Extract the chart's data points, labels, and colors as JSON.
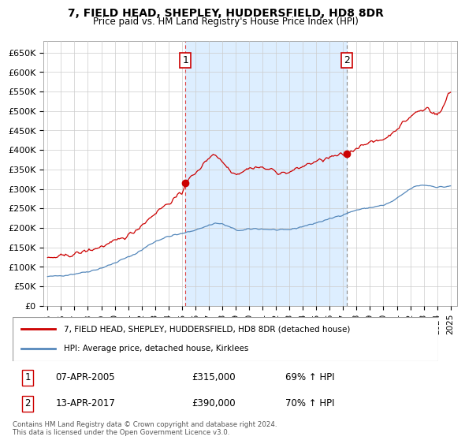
{
  "title": "7, FIELD HEAD, SHEPLEY, HUDDERSFIELD, HD8 8DR",
  "subtitle": "Price paid vs. HM Land Registry's House Price Index (HPI)",
  "ylabel_ticks": [
    "£0",
    "£50K",
    "£100K",
    "£150K",
    "£200K",
    "£250K",
    "£300K",
    "£350K",
    "£400K",
    "£450K",
    "£500K",
    "£550K",
    "£600K",
    "£650K"
  ],
  "ytick_values": [
    0,
    50000,
    100000,
    150000,
    200000,
    250000,
    300000,
    350000,
    400000,
    450000,
    500000,
    550000,
    600000,
    650000
  ],
  "ylim": [
    0,
    680000
  ],
  "xlim_start": 1994.7,
  "xlim_end": 2025.5,
  "sale1_x": 2005.27,
  "sale1_y": 315000,
  "sale2_x": 2017.28,
  "sale2_y": 390000,
  "red_color": "#cc0000",
  "blue_color": "#5588bb",
  "shade_color": "#ddeeff",
  "vline1_color": "#dd4444",
  "vline2_color": "#888888",
  "annotation_box_color": "#cc0000",
  "footer_text": "Contains HM Land Registry data © Crown copyright and database right 2024.\nThis data is licensed under the Open Government Licence v3.0.",
  "legend_line1": "7, FIELD HEAD, SHEPLEY, HUDDERSFIELD, HD8 8DR (detached house)",
  "legend_line2": "HPI: Average price, detached house, Kirklees",
  "table_row1": [
    "1",
    "07-APR-2005",
    "£315,000",
    "69% ↑ HPI"
  ],
  "table_row2": [
    "2",
    "13-APR-2017",
    "£390,000",
    "70% ↑ HPI"
  ],
  "xtick_years": [
    1995,
    1996,
    1997,
    1998,
    1999,
    2000,
    2001,
    2002,
    2003,
    2004,
    2005,
    2006,
    2007,
    2008,
    2009,
    2010,
    2011,
    2012,
    2013,
    2014,
    2015,
    2016,
    2017,
    2018,
    2019,
    2020,
    2021,
    2022,
    2023,
    2024,
    2025
  ]
}
